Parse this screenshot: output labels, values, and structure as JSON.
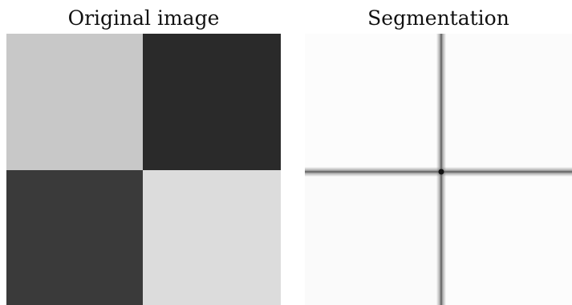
{
  "titles": {
    "left": "Original image",
    "right": "Segmentation"
  },
  "original_image": {
    "quadrants": {
      "top_left": "#c8c8c8",
      "top_right": "#2a2a2a",
      "bottom_left": "#3a3a3a",
      "bottom_right": "#dcdcdc"
    }
  },
  "segmentation": {
    "background": "#ffffff",
    "line_color": "#5a5a5a",
    "center_color": "#111111"
  }
}
